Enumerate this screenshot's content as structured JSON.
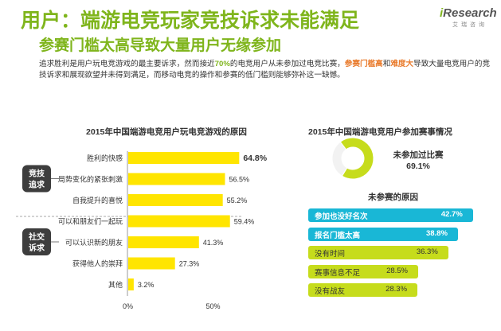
{
  "header": {
    "title": "用户：端游电竞玩家竞技诉求未能满足",
    "subtitle": "参赛门槛太高导致大量用户无缘参加",
    "logo_i": "i",
    "logo_text": "Research",
    "logo_sub": "艾瑞咨询"
  },
  "intro": {
    "p1": "追求胜利是用户玩电竞游戏的最主要诉求，然而接近",
    "pct": "70%",
    "p2": "的电竞用户从未参加过电竞比赛，",
    "hl1": "参赛门槛高",
    "and": "和",
    "hl2": "难度大",
    "p3": "导致大量电竞用户的竞技诉求和展现欲望并未得到满足，而移动电竞的操作和参赛的低门槛则能够弥补这一缺憾。"
  },
  "colors": {
    "green": "#7fb51c",
    "yellow": "#ffe500",
    "cyan": "#19b7d6",
    "yellowgreen": "#c6dc1c",
    "badge": "#3d3d3d"
  },
  "chart_data": [
    {
      "type": "bar",
      "orientation": "horizontal",
      "title": "2015年中国端游电竞用户玩电竞游戏的原因",
      "categories": [
        "胜利的快感",
        "局势变化的紧张刺激",
        "自我提升的喜悦",
        "可以和朋友们一起玩",
        "可以认识新的朋友",
        "获得他人的崇拜",
        "其他"
      ],
      "values": [
        64.8,
        56.5,
        55.2,
        59.4,
        41.3,
        27.3,
        3.2
      ],
      "value_labels": [
        "64.8%",
        "56.5%",
        "55.2%",
        "59.4%",
        "41.3%",
        "27.3%",
        "3.2%"
      ],
      "groups": [
        {
          "name": "竞技追求",
          "members": [
            0,
            1,
            2
          ]
        },
        {
          "name": "社交诉求",
          "members": [
            3,
            4,
            5
          ]
        }
      ],
      "xticks": [
        "0%",
        "50%"
      ],
      "xlim": [
        0,
        100
      ]
    },
    {
      "type": "pie",
      "title": "2015年中国端游电竞用户参加赛事情况",
      "slices": [
        {
          "label": "未参加过比赛",
          "value": 69.1,
          "value_label": "69.1%"
        },
        {
          "label": "",
          "value": 30.9
        }
      ]
    },
    {
      "type": "bar",
      "orientation": "horizontal",
      "title": "未参赛的原因",
      "categories": [
        "参加也没好名次",
        "报名门槛太高",
        "没有时间",
        "赛事信息不足",
        "没有战友"
      ],
      "values": [
        42.7,
        38.8,
        36.3,
        28.5,
        28.3
      ],
      "value_labels": [
        "42.7%",
        "38.8%",
        "36.3%",
        "28.5%",
        "28.3%"
      ],
      "bar_colors": [
        "#19b7d6",
        "#19b7d6",
        "#c6dc1c",
        "#c6dc1c",
        "#c6dc1c"
      ],
      "xlim": [
        0,
        45
      ]
    }
  ]
}
